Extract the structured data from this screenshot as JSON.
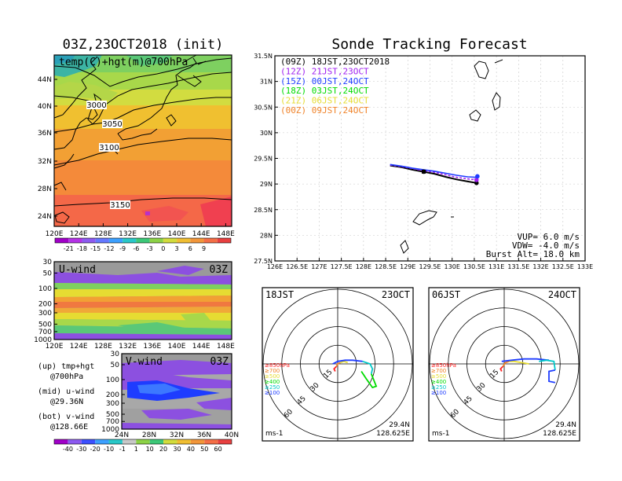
{
  "left_panel": {
    "title": "03Z,23OCT2018 (init)",
    "map": {
      "label": "temp(C)+hgt(m)@700hPa",
      "lat_ticks": [
        "44N",
        "40N",
        "36N",
        "32N",
        "28N",
        "24N"
      ],
      "lon_ticks": [
        "120E",
        "124E",
        "128E",
        "132E",
        "136E",
        "140E",
        "144E",
        "148E"
      ],
      "contour_labels": [
        "3000",
        "3050",
        "3100",
        "3150"
      ],
      "colorbar": [
        "-21",
        "-18",
        "-15",
        "-12",
        "-9",
        "-6",
        "-3",
        "0",
        "3",
        "6",
        "9"
      ]
    },
    "u_section": {
      "label": "U-wind",
      "time": "03Z",
      "p_ticks": [
        "30",
        "50",
        "100",
        "200",
        "300",
        "500",
        "700",
        "1000"
      ],
      "lon_ticks": [
        "120E",
        "124E",
        "128E",
        "132E",
        "136E",
        "140E",
        "144E",
        "148E"
      ]
    },
    "v_section": {
      "label": "V-wind",
      "time": "03Z",
      "p_ticks": [
        "30",
        "50",
        "100",
        "200",
        "300",
        "500",
        "700",
        "1000"
      ],
      "lat_ticks": [
        "24N",
        "28N",
        "32N",
        "36N",
        "40N"
      ]
    },
    "notes": [
      {
        "a": "(up) tmp+hgt",
        "b": "@700hPa"
      },
      {
        "a": "(mid) u-wind",
        "b": "@29.36N"
      },
      {
        "a": "(bot) v-wind",
        "b": "@128.66E"
      }
    ],
    "wind_colorbar": [
      "-40",
      "-30",
      "-20",
      "-10",
      "-1",
      "1",
      "10",
      "20",
      "30",
      "40",
      "50",
      "60"
    ]
  },
  "chart_data": {
    "type": "line",
    "title": "Sonde Tracking Forecast",
    "xlim": [
      126,
      133
    ],
    "ylim": [
      27.5,
      31.5
    ],
    "x_ticks": [
      "126E",
      "126.5E",
      "127E",
      "127.5E",
      "128E",
      "128.5E",
      "129E",
      "129.5E",
      "130E",
      "130.5E",
      "131E",
      "131.5E",
      "132E",
      "132.5E",
      "133E"
    ],
    "y_ticks": [
      "27.5N",
      "28N",
      "28.5N",
      "29N",
      "29.5N",
      "30N",
      "30.5N",
      "31N",
      "31.5N"
    ],
    "grid": true,
    "legend_position": "top-left",
    "series": [
      {
        "name": "(09Z)  18JST,23OCT2018",
        "color": "#000000",
        "x": [
          128.6,
          128.85,
          129.1,
          129.35,
          129.6,
          129.85,
          130.1,
          130.35,
          130.55
        ],
        "y": [
          29.36,
          29.33,
          29.28,
          29.24,
          29.2,
          29.14,
          29.09,
          29.05,
          29.02
        ]
      },
      {
        "name": "(12Z)  21JST,23OCT",
        "color": "#a020f0",
        "x": [
          128.6,
          128.85,
          129.1,
          129.35,
          129.6,
          129.85,
          130.1,
          130.35,
          130.55
        ],
        "y": [
          29.37,
          29.34,
          29.3,
          29.26,
          29.23,
          29.18,
          29.13,
          29.1,
          29.08
        ]
      },
      {
        "name": "(15Z)  00JST,24OCT",
        "color": "#1e3cff",
        "x": [
          128.6,
          128.85,
          129.1,
          129.35,
          129.6,
          129.85,
          130.1,
          130.35,
          130.55
        ],
        "y": [
          29.38,
          29.35,
          29.31,
          29.28,
          29.25,
          29.21,
          29.17,
          29.14,
          29.13
        ]
      },
      {
        "name": "(18Z)  03JST,24OCT",
        "color": "#00dc00",
        "x": [],
        "y": []
      },
      {
        "name": "(21Z)  06JST,24OCT",
        "color": "#e6dc32",
        "x": [],
        "y": []
      },
      {
        "name": "(00Z)  09JST,24OCT",
        "color": "#f08228",
        "x": [],
        "y": []
      }
    ],
    "markers": [
      {
        "x": 129.36,
        "y": 29.24,
        "color": "#000000"
      },
      {
        "x": 130.55,
        "y": 29.02,
        "color": "#000000"
      },
      {
        "x": 130.55,
        "y": 29.08,
        "color": "#a020f0"
      },
      {
        "x": 130.57,
        "y": 29.15,
        "color": "#1e3cff"
      }
    ],
    "annotations": [
      "VUP=  6.0 m/s",
      "VDW= -4.0 m/s",
      "Burst Alt= 18.0 km"
    ]
  },
  "hodographs": [
    {
      "time_label": "18JST",
      "date_label": "23OCT",
      "speed_labels": [
        "15",
        "30",
        "45",
        "60"
      ],
      "unit": "ms-1",
      "lat": "29.4N",
      "lon": "128.625E",
      "levels": [
        {
          "label": "≥850hPa",
          "color": "#ff2020"
        },
        {
          "label": "≥700",
          "color": "#f08228"
        },
        {
          "label": "≥500",
          "color": "#e6dc32"
        },
        {
          "label": "≥400",
          "color": "#00dc00"
        },
        {
          "label": "≥250",
          "color": "#00c8c8"
        },
        {
          "label": "≥100",
          "color": "#1e3cff"
        }
      ],
      "traces": [
        {
          "color": "#ff2020",
          "u": [
            -2,
            -3,
            -1
          ],
          "v": [
            -6,
            -4,
            -2
          ]
        },
        {
          "color": "#f08228",
          "u": [
            -1,
            0,
            2
          ],
          "v": [
            -2,
            0,
            1
          ]
        },
        {
          "color": "#e6dc32",
          "u": [
            2,
            5,
            8
          ],
          "v": [
            1,
            2,
            1
          ]
        },
        {
          "color": "#1e3cff",
          "u": [
            -4,
            0,
            6,
            12,
            20
          ],
          "v": [
            0,
            2,
            3,
            3,
            2
          ]
        },
        {
          "color": "#00c8c8",
          "u": [
            20,
            26,
            28,
            27
          ],
          "v": [
            2,
            0,
            -4,
            -8
          ]
        },
        {
          "color": "#00dc00",
          "u": [
            27,
            31,
            28,
            23,
            19
          ],
          "v": [
            -8,
            -18,
            -19,
            -12,
            -6
          ]
        }
      ]
    },
    {
      "time_label": "06JST",
      "date_label": "24OCT",
      "speed_labels": [
        "15",
        "30",
        "45",
        "60"
      ],
      "unit": "ms-1",
      "lat": "29.4N",
      "lon": "128.625E",
      "levels": [
        {
          "label": "≥850hPa",
          "color": "#ff2020"
        },
        {
          "label": "≥700",
          "color": "#f08228"
        },
        {
          "label": "≥500",
          "color": "#e6dc32"
        },
        {
          "label": "≥400",
          "color": "#00dc00"
        },
        {
          "label": "≥250",
          "color": "#00c8c8"
        },
        {
          "label": "≥100",
          "color": "#1e3cff"
        }
      ],
      "traces": [
        {
          "color": "#ff2020",
          "u": [
            -2,
            -3,
            -1
          ],
          "v": [
            -6,
            -4,
            -2
          ]
        },
        {
          "color": "#f08228",
          "u": [
            -1,
            1,
            4
          ],
          "v": [
            -2,
            1,
            2
          ]
        },
        {
          "color": "#e6dc32",
          "u": [
            4,
            8,
            14,
            20
          ],
          "v": [
            2,
            2,
            1,
            0
          ]
        },
        {
          "color": "#1e3cff",
          "u": [
            -2,
            6,
            16,
            26,
            36
          ],
          "v": [
            2,
            3,
            4,
            4,
            3
          ]
        },
        {
          "color": "#00c8c8",
          "u": [
            28,
            34,
            40,
            41
          ],
          "v": [
            2,
            3,
            2,
            -5
          ]
        },
        {
          "color": "#1e3cff",
          "u": [
            41,
            36,
            36,
            41
          ],
          "v": [
            -5,
            -6,
            -14,
            -15
          ]
        }
      ]
    }
  ]
}
